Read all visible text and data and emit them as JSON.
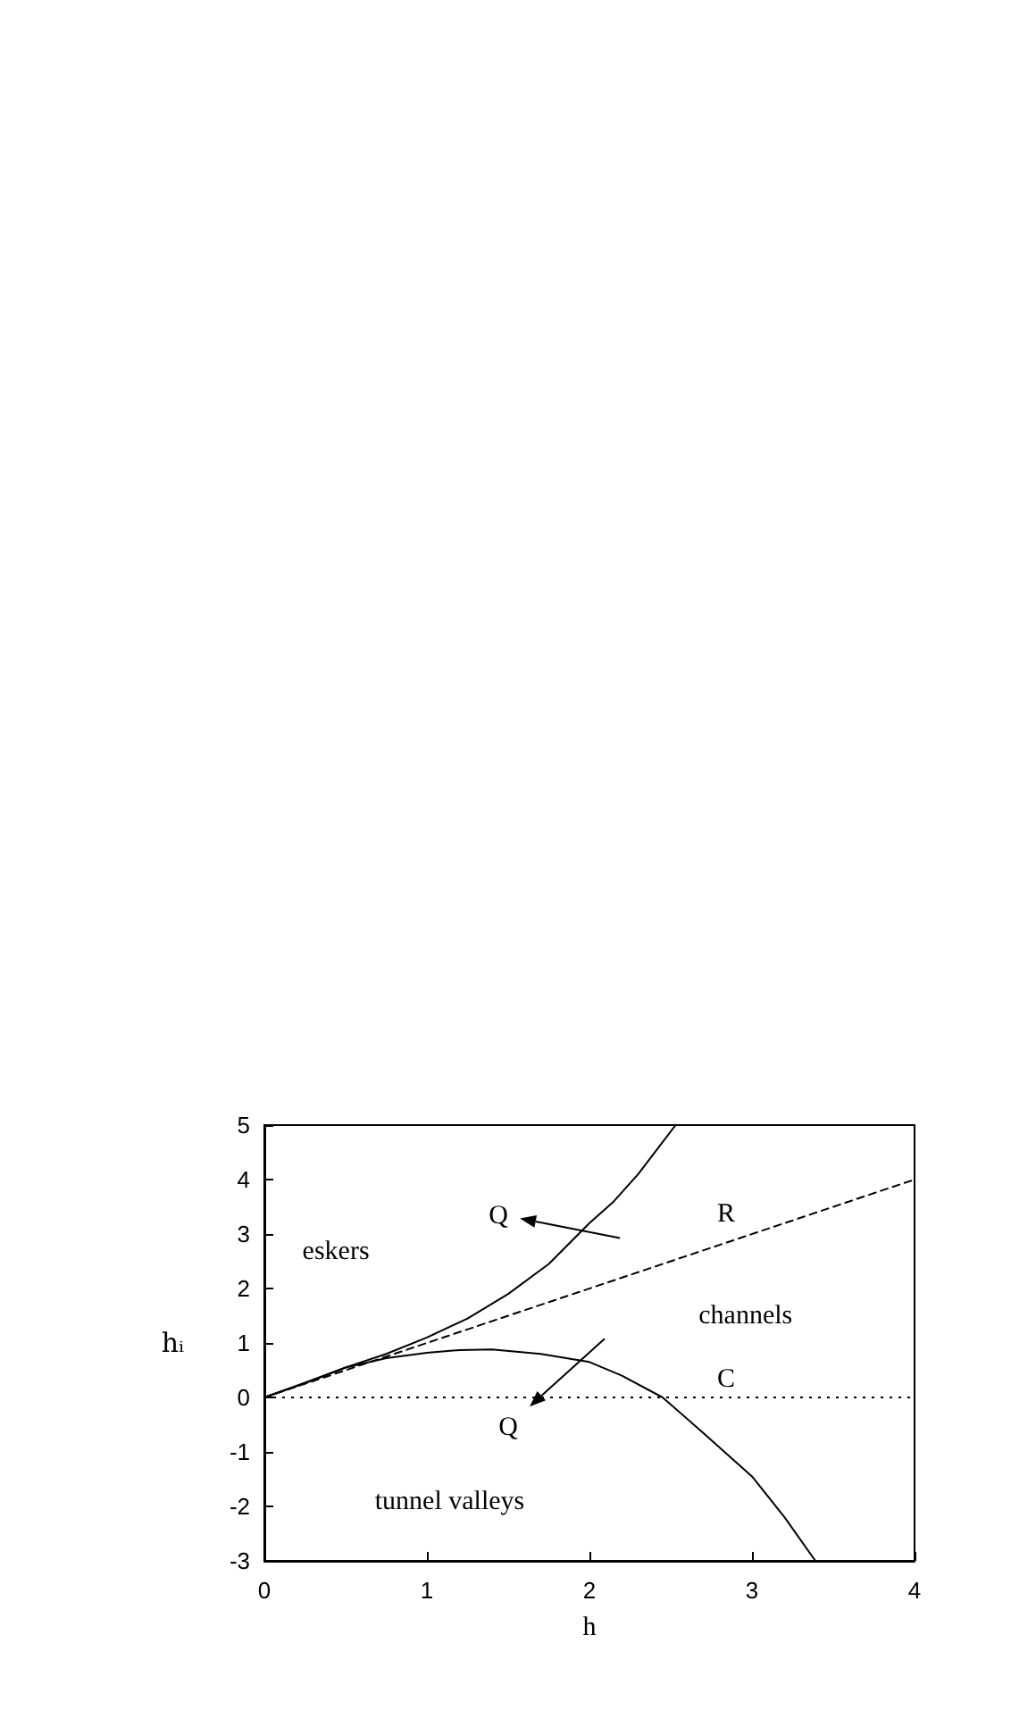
{
  "chart_data": {
    "type": "line",
    "xlabel": "h",
    "ylabel": "hᵢ",
    "xlim": [
      0,
      4
    ],
    "ylim": [
      -3,
      5
    ],
    "xticks": [
      0,
      1,
      2,
      3,
      4
    ],
    "yticks": [
      -3,
      -2,
      -1,
      0,
      1,
      2,
      3,
      4,
      5
    ],
    "grid": false,
    "legend": false,
    "marker": "none",
    "series": [
      {
        "color": "#000000",
        "line_style": "solid",
        "x": [
          0,
          0.25,
          0.5,
          0.75,
          1,
          1.25,
          1.5,
          1.75,
          2,
          2.15,
          2.3,
          2.53
        ],
        "values": [
          0,
          0.26,
          0.55,
          0.8,
          1.1,
          1.45,
          1.9,
          2.45,
          3.2,
          3.6,
          4.1,
          5
        ]
      },
      {
        "color": "#000000",
        "line_style": "solid",
        "x": [
          0,
          0.25,
          0.5,
          0.75,
          1,
          1.2,
          1.4,
          1.7,
          2,
          2.2,
          2.45,
          2.7,
          3,
          3.2,
          3.39
        ],
        "values": [
          0,
          0.27,
          0.55,
          0.72,
          0.82,
          0.87,
          0.88,
          0.8,
          0.65,
          0.4,
          0,
          -0.65,
          -1.45,
          -2.2,
          -3
        ]
      },
      {
        "name": "R",
        "color": "#000000",
        "line_style": "dashed",
        "x": [
          0,
          4
        ],
        "values": [
          0,
          4
        ]
      }
    ],
    "ref_lines": [
      {
        "axis": "y",
        "value": 0,
        "label": "C",
        "color": "#000000",
        "line_style": "dotted"
      }
    ],
    "annotations": [
      "eskers",
      "channels",
      "tunnel valleys",
      "Q",
      "Q"
    ]
  }
}
